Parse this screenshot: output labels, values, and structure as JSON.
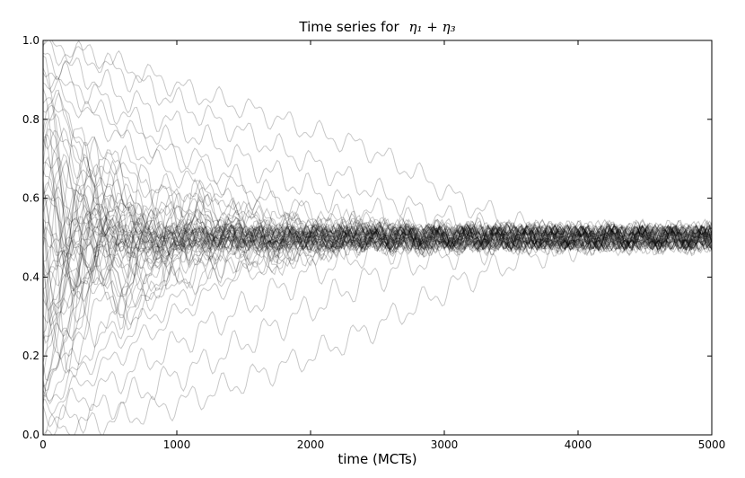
{
  "chart_data": {
    "type": "line",
    "title": "Time series for",
    "title_math": "η₁ + η₃",
    "xlabel": "time (MCTs)",
    "ylabel": "",
    "xlim": [
      0,
      5000
    ],
    "ylim": [
      0.0,
      1.0
    ],
    "x_ticks": [
      0,
      1000,
      2000,
      3000,
      4000,
      5000
    ],
    "x_tick_labels": [
      "0",
      "1000",
      "2000",
      "3000",
      "4000",
      "5000"
    ],
    "y_ticks": [
      0.0,
      0.2,
      0.4,
      0.6,
      0.8,
      1.0
    ],
    "y_tick_labels": [
      "0.0",
      "0.2",
      "0.4",
      "0.6",
      "0.8",
      "1.0"
    ],
    "grid": false,
    "legend": "none",
    "line_color": "#000000",
    "line_opacity": 0.22,
    "equilibrium_value": 0.5,
    "series": [
      {
        "x": [
          0,
          400,
          800,
          1200,
          1600,
          2000,
          2400,
          2800,
          3200,
          3600,
          4000,
          4500,
          5000
        ],
        "values": [
          0.99,
          0.96,
          0.91,
          0.86,
          0.82,
          0.77,
          0.73,
          0.66,
          0.58,
          0.53,
          0.51,
          0.5,
          0.5
        ]
      },
      {
        "x": [
          0,
          400,
          800,
          1200,
          1600,
          2000,
          2400,
          2800,
          3200,
          3600,
          4000,
          4500,
          5000
        ],
        "values": [
          0.98,
          0.95,
          0.88,
          0.81,
          0.75,
          0.69,
          0.63,
          0.57,
          0.53,
          0.51,
          0.5,
          0.5,
          0.5
        ]
      },
      {
        "x": [
          0,
          400,
          800,
          1200,
          1600,
          2000,
          2400,
          2800,
          3200,
          3600,
          4000,
          4500,
          5000
        ],
        "values": [
          0.96,
          0.9,
          0.82,
          0.75,
          0.68,
          0.62,
          0.57,
          0.53,
          0.51,
          0.5,
          0.5,
          0.5,
          0.5
        ]
      },
      {
        "x": [
          0,
          400,
          800,
          1200,
          1600,
          2000,
          2400,
          2800,
          3200,
          3600,
          4000,
          4500,
          5000
        ],
        "values": [
          0.94,
          0.86,
          0.77,
          0.69,
          0.62,
          0.56,
          0.53,
          0.51,
          0.5,
          0.5,
          0.5,
          0.5,
          0.5
        ]
      },
      {
        "x": [
          0,
          400,
          800,
          1200,
          1600,
          2000,
          2400,
          2800,
          3200,
          3600,
          4000,
          4500,
          5000
        ],
        "values": [
          0.9,
          0.8,
          0.7,
          0.62,
          0.56,
          0.52,
          0.51,
          0.5,
          0.5,
          0.5,
          0.5,
          0.5,
          0.5
        ]
      },
      {
        "x": [
          0,
          400,
          800,
          1200,
          1600,
          2000,
          2400,
          2800,
          3200,
          3600,
          4000,
          4500,
          5000
        ],
        "values": [
          0.85,
          0.72,
          0.62,
          0.56,
          0.52,
          0.51,
          0.5,
          0.5,
          0.5,
          0.5,
          0.5,
          0.5,
          0.5
        ]
      },
      {
        "x": [
          0,
          400,
          800,
          1200,
          1600,
          2000,
          2400,
          2800,
          3200,
          3600,
          4000,
          4500,
          5000
        ],
        "values": [
          0.78,
          0.64,
          0.56,
          0.52,
          0.51,
          0.5,
          0.5,
          0.5,
          0.5,
          0.5,
          0.5,
          0.5,
          0.5
        ]
      },
      {
        "x": [
          0,
          400,
          800,
          1200,
          1600,
          2000,
          2400,
          2800,
          3200,
          3600,
          4000,
          4500,
          5000
        ],
        "values": [
          0.7,
          0.58,
          0.53,
          0.51,
          0.5,
          0.5,
          0.5,
          0.5,
          0.5,
          0.5,
          0.5,
          0.5,
          0.5
        ]
      },
      {
        "x": [
          0,
          400,
          800,
          1200,
          1600,
          2000,
          2400,
          2800,
          3200,
          3600,
          4000,
          4500,
          5000
        ],
        "values": [
          0.01,
          0.03,
          0.06,
          0.1,
          0.15,
          0.2,
          0.26,
          0.33,
          0.4,
          0.45,
          0.48,
          0.5,
          0.5
        ]
      },
      {
        "x": [
          0,
          400,
          800,
          1200,
          1600,
          2000,
          2400,
          2800,
          3200,
          3600,
          4000,
          4500,
          5000
        ],
        "values": [
          0.02,
          0.06,
          0.12,
          0.18,
          0.25,
          0.32,
          0.39,
          0.44,
          0.47,
          0.49,
          0.5,
          0.5,
          0.5
        ]
      },
      {
        "x": [
          0,
          400,
          800,
          1200,
          1600,
          2000,
          2400,
          2800,
          3200,
          3600,
          4000,
          4500,
          5000
        ],
        "values": [
          0.04,
          0.11,
          0.19,
          0.27,
          0.34,
          0.41,
          0.46,
          0.49,
          0.5,
          0.5,
          0.5,
          0.5,
          0.5
        ]
      },
      {
        "x": [
          0,
          400,
          800,
          1200,
          1600,
          2000,
          2400,
          2800,
          3200,
          3600,
          4000,
          4500,
          5000
        ],
        "values": [
          0.06,
          0.16,
          0.26,
          0.35,
          0.42,
          0.47,
          0.49,
          0.5,
          0.5,
          0.5,
          0.5,
          0.5,
          0.5
        ]
      },
      {
        "x": [
          0,
          400,
          800,
          1200,
          1600,
          2000,
          2400,
          2800,
          3200,
          3600,
          4000,
          4500,
          5000
        ],
        "values": [
          0.1,
          0.24,
          0.35,
          0.43,
          0.47,
          0.49,
          0.5,
          0.5,
          0.5,
          0.5,
          0.5,
          0.5,
          0.5
        ]
      },
      {
        "x": [
          0,
          400,
          800,
          1200,
          1600,
          2000,
          2400,
          2800,
          3200,
          3600,
          4000,
          4500,
          5000
        ],
        "values": [
          0.15,
          0.32,
          0.42,
          0.47,
          0.49,
          0.5,
          0.5,
          0.5,
          0.5,
          0.5,
          0.5,
          0.5,
          0.5
        ]
      },
      {
        "x": [
          0,
          400,
          800,
          1200,
          1600,
          2000,
          2400,
          2800,
          3200,
          3600,
          4000,
          4500,
          5000
        ],
        "values": [
          0.22,
          0.39,
          0.46,
          0.49,
          0.5,
          0.5,
          0.5,
          0.5,
          0.5,
          0.5,
          0.5,
          0.5,
          0.5
        ]
      },
      {
        "x": [
          0,
          400,
          800,
          1200,
          1600,
          2000,
          2400,
          2800,
          3200,
          3600,
          4000,
          4500,
          5000
        ],
        "values": [
          0.3,
          0.44,
          0.48,
          0.5,
          0.5,
          0.5,
          0.5,
          0.5,
          0.5,
          0.5,
          0.5,
          0.5,
          0.5
        ]
      },
      {
        "x": [
          0,
          400,
          800,
          1200,
          1600,
          2000,
          2400,
          2800,
          3200,
          3600,
          4000,
          4500,
          5000
        ],
        "values": [
          0.6,
          0.52,
          0.5,
          0.5,
          0.5,
          0.5,
          0.5,
          0.5,
          0.5,
          0.5,
          0.5,
          0.5,
          0.5
        ]
      },
      {
        "x": [
          0,
          400,
          800,
          1200,
          1600,
          2000,
          2400,
          2800,
          3200,
          3600,
          4000,
          4500,
          5000
        ],
        "values": [
          0.4,
          0.48,
          0.5,
          0.5,
          0.5,
          0.5,
          0.5,
          0.5,
          0.5,
          0.5,
          0.5,
          0.5,
          0.5
        ]
      },
      {
        "x": [
          0,
          400,
          800,
          1200,
          1600,
          2000,
          2400,
          2800,
          3200,
          3600,
          4000,
          4500,
          5000
        ],
        "values": [
          0.92,
          0.82,
          0.74,
          0.66,
          0.6,
          0.55,
          0.52,
          0.51,
          0.5,
          0.5,
          0.5,
          0.5,
          0.5
        ]
      },
      {
        "x": [
          0,
          400,
          800,
          1200,
          1600,
          2000,
          2400,
          2800,
          3200,
          3600,
          4000,
          4500,
          5000
        ],
        "values": [
          0.08,
          0.2,
          0.3,
          0.38,
          0.44,
          0.48,
          0.5,
          0.5,
          0.5,
          0.5,
          0.5,
          0.5,
          0.5
        ]
      }
    ]
  }
}
